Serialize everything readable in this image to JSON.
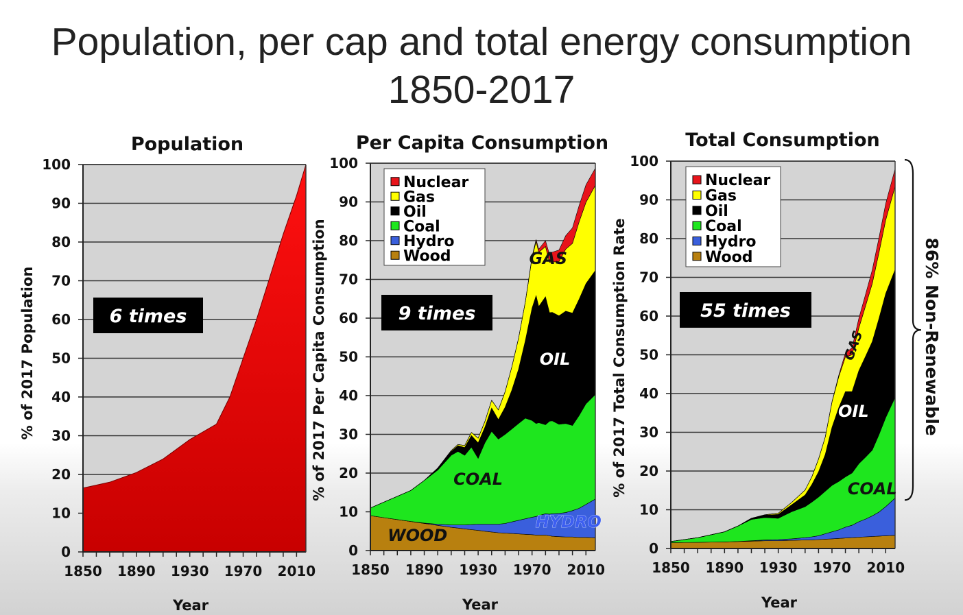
{
  "title": {
    "line1": "Population, per cap and total energy consumption",
    "line2": "1850-2017"
  },
  "colors": {
    "nuclear": "#e8141b",
    "gas": "#ffff00",
    "oil": "#000000",
    "coal": "#1ee61e",
    "hydro": "#3a5fdc",
    "wood": "#b8800f",
    "population": "#ff0000",
    "plot_bg": "#d4d4d4"
  },
  "chart_data": [
    {
      "type": "area",
      "title": "Population",
      "xlabel": "Year",
      "ylabel": "% of  2017 Population",
      "xlim": [
        1850,
        2017
      ],
      "ylim": [
        0,
        100
      ],
      "xticks": [
        1850,
        1890,
        1930,
        1970,
        2010
      ],
      "yticks": [
        0,
        10,
        20,
        30,
        40,
        50,
        60,
        70,
        80,
        90,
        100
      ],
      "annotation": "6 times",
      "x": [
        1850,
        1870,
        1890,
        1910,
        1930,
        1950,
        1960,
        1970,
        1980,
        1990,
        2000,
        2010,
        2017
      ],
      "series": [
        {
          "name": "Population",
          "color_key": "population",
          "values": [
            16.5,
            18,
            20.5,
            24,
            29,
            33,
            40,
            50,
            60,
            71,
            82,
            92,
            100
          ]
        }
      ]
    },
    {
      "type": "area",
      "stacked": true,
      "title": "Per Capita Consumption",
      "xlabel": "Year",
      "ylabel": "% of 2017 Per Capita Consumption",
      "xlim": [
        1850,
        2017
      ],
      "ylim": [
        0,
        100
      ],
      "xticks": [
        1850,
        1890,
        1930,
        1970,
        2010
      ],
      "yticks": [
        0,
        10,
        20,
        30,
        40,
        50,
        60,
        70,
        80,
        90,
        100
      ],
      "annotation": "9 times",
      "legend": [
        "Nuclear",
        "Gas",
        "Oil",
        "Coal",
        "Hydro",
        "Wood"
      ],
      "legend_position": "top-left",
      "area_labels": [
        {
          "text": "GAS",
          "x": 1982,
          "y": 74
        },
        {
          "text": "OIL",
          "x": 1987,
          "y": 48
        },
        {
          "text": "COAL",
          "x": 1930,
          "y": 17
        },
        {
          "text": "HYDRO",
          "x": 1997,
          "y": 6
        },
        {
          "text": "WOOD",
          "x": 1885,
          "y": 2.5
        }
      ],
      "x": [
        1850,
        1860,
        1870,
        1880,
        1890,
        1900,
        1910,
        1915,
        1920,
        1925,
        1930,
        1935,
        1940,
        1945,
        1950,
        1955,
        1960,
        1965,
        1970,
        1973,
        1975,
        1980,
        1983,
        1985,
        1990,
        1995,
        2000,
        2005,
        2010,
        2017
      ],
      "series": [
        {
          "name": "Wood",
          "color_key": "wood",
          "values": [
            9,
            8.5,
            8,
            7.5,
            7,
            6.5,
            6,
            5.8,
            5.6,
            5.4,
            5.2,
            5,
            4.8,
            4.6,
            4.5,
            4.4,
            4.3,
            4.2,
            4.1,
            4,
            4,
            4,
            3.8,
            3.7,
            3.6,
            3.5,
            3.5,
            3.4,
            3.4,
            3.3
          ]
        },
        {
          "name": "Hydro",
          "color_key": "hydro",
          "values": [
            0,
            0,
            0,
            0,
            0.1,
            0.3,
            0.6,
            0.8,
            1,
            1.3,
            1.6,
            1.8,
            2,
            2.2,
            2.5,
            3,
            3.5,
            4,
            4.5,
            4.8,
            5,
            5.5,
            5.6,
            5.8,
            6,
            6.3,
            6.8,
            7.5,
            8.5,
            10
          ]
        },
        {
          "name": "Coal",
          "color_key": "coal",
          "values": [
            2,
            4,
            6,
            8,
            11,
            14,
            18,
            19,
            18,
            20,
            17,
            21,
            24,
            22,
            23,
            24,
            25,
            26,
            25,
            24,
            24,
            23,
            24,
            24,
            23,
            23,
            22,
            24,
            26,
            27
          ]
        },
        {
          "name": "Oil",
          "color_key": "oil",
          "values": [
            0,
            0,
            0,
            0,
            0,
            0.5,
            1,
            1.5,
            2,
            3,
            4,
            4,
            6,
            5,
            7,
            10,
            14,
            20,
            29,
            33,
            30,
            33,
            28,
            28,
            28,
            29,
            29,
            30,
            31,
            32
          ]
        },
        {
          "name": "Gas",
          "color_key": "gas",
          "values": [
            0,
            0,
            0,
            0,
            0,
            0,
            0.2,
            0.3,
            0.5,
            0.8,
            1.2,
            1.5,
            2,
            2.5,
            4,
            6,
            8,
            10,
            13,
            14,
            14,
            13,
            13,
            13,
            14,
            16,
            18,
            20,
            21,
            22
          ]
        },
        {
          "name": "Nuclear",
          "color_key": "nuclear",
          "values": [
            0,
            0,
            0,
            0,
            0,
            0,
            0,
            0,
            0,
            0,
            0,
            0,
            0,
            0,
            0,
            0,
            0,
            0,
            0.3,
            0.5,
            0.8,
            1.5,
            2,
            2.5,
            3,
            3.5,
            4,
            4.2,
            4.5,
            4.4
          ]
        }
      ]
    },
    {
      "type": "area",
      "stacked": true,
      "title": "Total Consumption",
      "xlabel": "Year",
      "ylabel": "% of  2017 Total Consumption Rate",
      "xlim": [
        1850,
        2017
      ],
      "ylim": [
        0,
        100
      ],
      "xticks": [
        1850,
        1890,
        1930,
        1970,
        2010
      ],
      "yticks": [
        0,
        10,
        20,
        30,
        40,
        50,
        60,
        70,
        80,
        90,
        100
      ],
      "annotation": "55 times",
      "legend": [
        "Nuclear",
        "Gas",
        "Oil",
        "Coal",
        "Hydro",
        "Wood"
      ],
      "legend_position": "top-left",
      "bracket_label": "86% Non-Renewable",
      "area_labels": [
        {
          "text": "GAS",
          "x": 1989,
          "y": 52,
          "rotate": -70
        },
        {
          "text": "OIL",
          "x": 1986,
          "y": 34
        },
        {
          "text": "COAL",
          "x": 2000,
          "y": 14
        }
      ],
      "x": [
        1850,
        1870,
        1890,
        1900,
        1910,
        1920,
        1930,
        1940,
        1950,
        1955,
        1960,
        1965,
        1970,
        1975,
        1980,
        1985,
        1990,
        1995,
        2000,
        2005,
        2010,
        2017
      ],
      "series": [
        {
          "name": "Wood",
          "color_key": "wood",
          "values": [
            1.5,
            1.6,
            1.7,
            1.8,
            1.9,
            2,
            2,
            2.1,
            2.2,
            2.2,
            2.3,
            2.4,
            2.5,
            2.6,
            2.7,
            2.8,
            2.9,
            3,
            3.1,
            3.2,
            3.3,
            3.4
          ]
        },
        {
          "name": "Hydro",
          "color_key": "hydro",
          "values": [
            0,
            0,
            0,
            0,
            0.1,
            0.2,
            0.3,
            0.4,
            0.6,
            0.8,
            1,
            1.4,
            1.8,
            2.2,
            2.8,
            3.2,
            4,
            4.6,
            5.3,
            6.2,
            7.5,
            9.6
          ]
        },
        {
          "name": "Coal",
          "color_key": "coal",
          "values": [
            0.3,
            1.2,
            2.6,
            4,
            5.5,
            5.8,
            5.5,
            7,
            8,
            9,
            10,
            11,
            12,
            12.5,
            13,
            13.5,
            15,
            16,
            17,
            20,
            23,
            26
          ]
        },
        {
          "name": "Oil",
          "color_key": "oil",
          "values": [
            0,
            0,
            0,
            0,
            0.3,
            0.6,
            1,
            1.8,
            3,
            4.5,
            6.5,
            9.5,
            15,
            19,
            22,
            21,
            24,
            26,
            28,
            30,
            32,
            33
          ]
        },
        {
          "name": "Gas",
          "color_key": "gas",
          "values": [
            0,
            0,
            0,
            0,
            0,
            0.1,
            0.3,
            0.6,
            1.3,
            2,
            3.3,
            4.5,
            6.5,
            8,
            9,
            9.5,
            11,
            13,
            15,
            17,
            19,
            21.5
          ]
        },
        {
          "name": "Nuclear",
          "color_key": "nuclear",
          "values": [
            0,
            0,
            0,
            0,
            0,
            0,
            0,
            0,
            0,
            0,
            0,
            0,
            0.1,
            0.4,
            1,
            1.8,
            2.5,
            3,
            3.5,
            3.8,
            4.2,
            4.5
          ]
        }
      ]
    }
  ]
}
